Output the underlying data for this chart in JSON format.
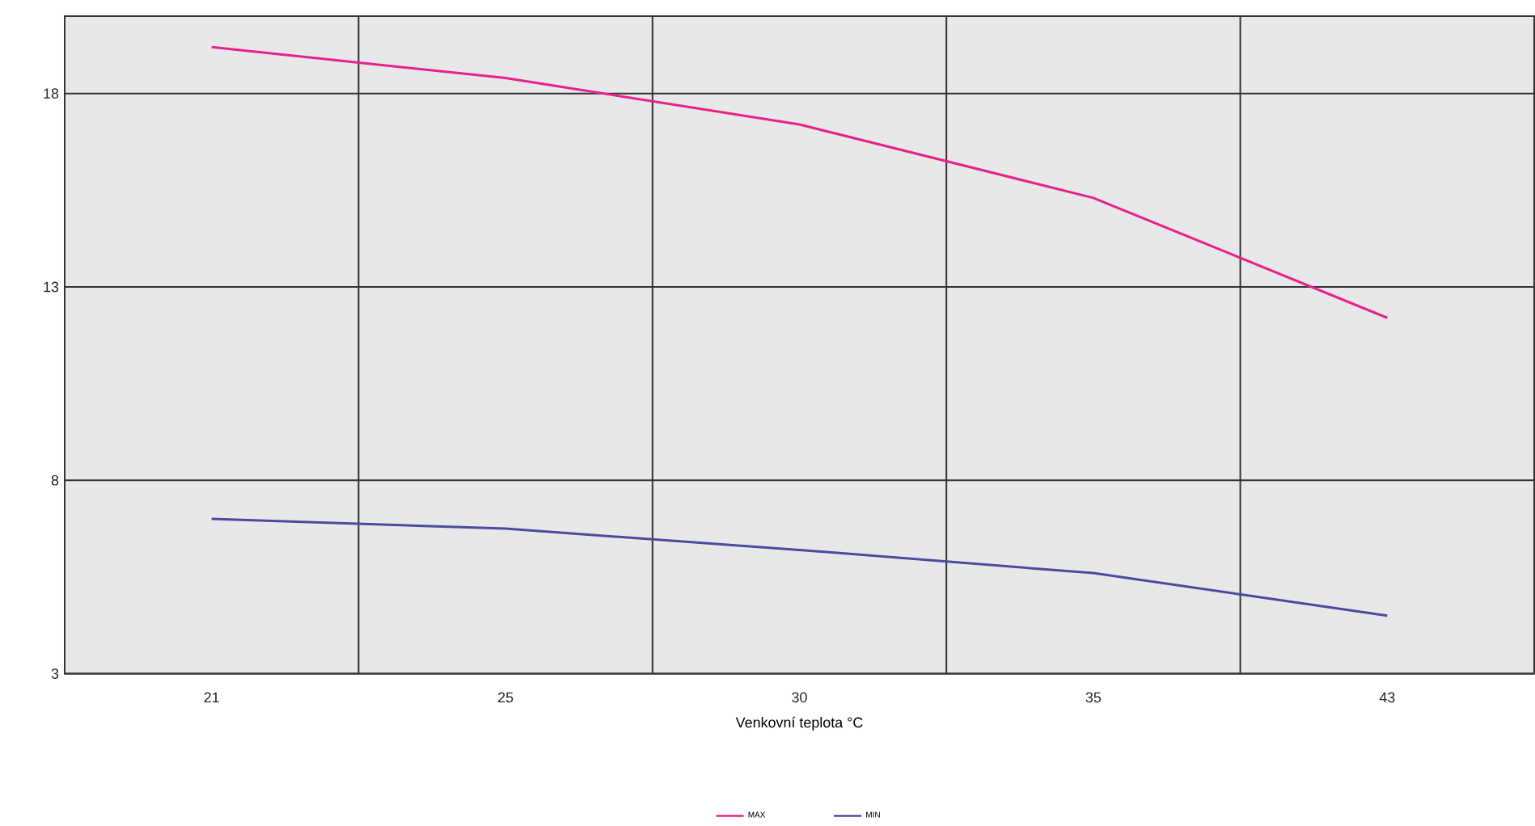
{
  "chart_data": {
    "type": "line",
    "xlabel": "Venkovní teplota °C",
    "categories": [
      "21",
      "25",
      "30",
      "35",
      "43"
    ],
    "series": [
      {
        "name": "MAX",
        "color": "#e8218a",
        "values": [
          19.2,
          18.4,
          17.2,
          15.3,
          12.2
        ]
      },
      {
        "name": "MIN",
        "color": "#4b4a9e",
        "values": [
          7.0,
          6.75,
          6.2,
          5.6,
          4.5
        ]
      }
    ],
    "ylim": [
      3,
      20
    ],
    "yticks": [
      3,
      8,
      13,
      18
    ],
    "grid": true,
    "legend": "bottom",
    "marker": "none",
    "line_style": "solid"
  }
}
